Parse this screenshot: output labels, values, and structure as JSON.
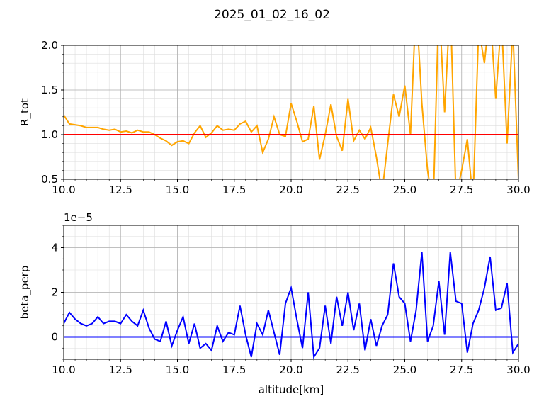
{
  "title": "2025_01_02_16_02",
  "chart_data": [
    {
      "type": "line",
      "ylabel": "R_tot",
      "x": [
        10.0,
        10.25,
        10.5,
        10.75,
        11.0,
        11.25,
        11.5,
        11.75,
        12.0,
        12.25,
        12.5,
        12.75,
        13.0,
        13.25,
        13.5,
        13.75,
        14.0,
        14.25,
        14.5,
        14.75,
        15.0,
        15.25,
        15.5,
        15.75,
        16.0,
        16.25,
        16.5,
        16.75,
        17.0,
        17.25,
        17.5,
        17.75,
        18.0,
        18.25,
        18.5,
        18.75,
        19.0,
        19.25,
        19.5,
        19.75,
        20.0,
        20.25,
        20.5,
        20.75,
        21.0,
        21.25,
        21.5,
        21.75,
        22.0,
        22.25,
        22.5,
        22.75,
        23.0,
        23.25,
        23.5,
        23.75,
        24.0,
        24.25,
        24.5,
        24.75,
        25.0,
        25.25,
        25.5,
        25.75,
        26.0,
        26.25,
        26.5,
        26.75,
        27.0,
        27.25,
        27.5,
        27.75,
        28.0,
        28.25,
        28.5,
        28.75,
        29.0,
        29.25,
        29.5,
        29.75,
        30.0
      ],
      "series": [
        {
          "color": "#ffa500",
          "values": [
            1.22,
            1.12,
            1.11,
            1.1,
            1.08,
            1.08,
            1.08,
            1.06,
            1.05,
            1.06,
            1.03,
            1.04,
            1.02,
            1.05,
            1.03,
            1.03,
            1.0,
            0.96,
            0.93,
            0.88,
            0.92,
            0.93,
            0.9,
            1.02,
            1.1,
            0.97,
            1.02,
            1.1,
            1.05,
            1.06,
            1.05,
            1.12,
            1.15,
            1.03,
            1.1,
            0.8,
            0.95,
            1.2,
            1.0,
            0.98,
            1.35,
            1.15,
            0.92,
            0.95,
            1.32,
            0.72,
            1.0,
            1.34,
            0.98,
            0.82,
            1.4,
            0.93,
            1.05,
            0.95,
            1.08,
            0.75,
            0.35,
            0.9,
            1.45,
            1.2,
            1.55,
            1.0,
            2.5,
            1.35,
            0.6,
            0.2,
            2.5,
            1.25,
            2.5,
            0.3,
            0.6,
            0.95,
            0.25,
            2.2,
            1.8,
            2.4,
            1.4,
            2.3,
            0.9,
            2.2,
            0.5
          ]
        }
      ],
      "hline": {
        "value": 1.0,
        "color": "#ff0000"
      },
      "xlim": [
        10,
        30
      ],
      "xticks": [
        {
          "value": 10,
          "label": "10.0"
        },
        12.5,
        {
          "value": 15,
          "label": "15.0"
        },
        17.5,
        {
          "value": 20,
          "label": "20.0"
        },
        22.5,
        {
          "value": 25,
          "label": "25.0"
        },
        27.5,
        {
          "value": 30,
          "label": "30.0"
        }
      ],
      "ylim": [
        0.5,
        2.0
      ],
      "yticks": [
        0.5,
        {
          "value": 1,
          "label": "1.0"
        },
        1.5,
        {
          "value": 2,
          "label": "2.0"
        }
      ],
      "grid": true,
      "x_minor_step": 0.5,
      "y_minor_step": 0.1
    },
    {
      "type": "line",
      "ylabel": "beta_perp",
      "xlabel": "altitude[km]",
      "offset_text": "1e−5",
      "x": [
        10.0,
        10.25,
        10.5,
        10.75,
        11.0,
        11.25,
        11.5,
        11.75,
        12.0,
        12.25,
        12.5,
        12.75,
        13.0,
        13.25,
        13.5,
        13.75,
        14.0,
        14.25,
        14.5,
        14.75,
        15.0,
        15.25,
        15.5,
        15.75,
        16.0,
        16.25,
        16.5,
        16.75,
        17.0,
        17.25,
        17.5,
        17.75,
        18.0,
        18.25,
        18.5,
        18.75,
        19.0,
        19.25,
        19.5,
        19.75,
        20.0,
        20.25,
        20.5,
        20.75,
        21.0,
        21.25,
        21.5,
        21.75,
        22.0,
        22.25,
        22.5,
        22.75,
        23.0,
        23.25,
        23.5,
        23.75,
        24.0,
        24.25,
        24.5,
        24.75,
        25.0,
        25.25,
        25.5,
        25.75,
        26.0,
        26.25,
        26.5,
        26.75,
        27.0,
        27.25,
        27.5,
        27.75,
        28.0,
        28.25,
        28.5,
        28.75,
        29.0,
        29.25,
        29.5,
        29.75,
        30.0
      ],
      "series": [
        {
          "color": "#0000ff",
          "values": [
            0.6,
            1.1,
            0.8,
            0.6,
            0.5,
            0.6,
            0.9,
            0.6,
            0.7,
            0.7,
            0.6,
            1.0,
            0.7,
            0.5,
            1.2,
            0.4,
            -0.1,
            -0.2,
            0.7,
            -0.4,
            0.3,
            0.9,
            -0.3,
            0.6,
            -0.5,
            -0.3,
            -0.6,
            0.5,
            -0.2,
            0.2,
            0.1,
            1.4,
            0.1,
            -0.9,
            0.6,
            0.1,
            1.2,
            0.2,
            -0.8,
            1.5,
            2.2,
            0.8,
            -0.5,
            2.0,
            -0.9,
            -0.5,
            1.4,
            -0.3,
            1.8,
            0.5,
            2.0,
            0.3,
            1.5,
            -0.6,
            0.8,
            -0.4,
            0.5,
            1.0,
            3.3,
            1.8,
            1.5,
            -0.2,
            1.2,
            3.8,
            -0.2,
            0.5,
            2.5,
            0.1,
            3.8,
            1.6,
            1.5,
            -0.7,
            0.6,
            1.2,
            2.2,
            3.6,
            1.2,
            1.3,
            2.4,
            -0.7,
            -0.3
          ]
        }
      ],
      "hline": {
        "value": 0,
        "color": "#0000ff"
      },
      "xlim": [
        10,
        30
      ],
      "xticks": [
        {
          "value": 10,
          "label": "10.0"
        },
        12.5,
        {
          "value": 15,
          "label": "15.0"
        },
        17.5,
        {
          "value": 20,
          "label": "20.0"
        },
        22.5,
        {
          "value": 25,
          "label": "25.0"
        },
        27.5,
        {
          "value": 30,
          "label": "30.0"
        }
      ],
      "ylim": [
        -1,
        5
      ],
      "yticks": [
        0,
        2,
        4
      ],
      "grid": true,
      "x_minor_step": 0.5,
      "y_minor_step": 0.5
    }
  ]
}
